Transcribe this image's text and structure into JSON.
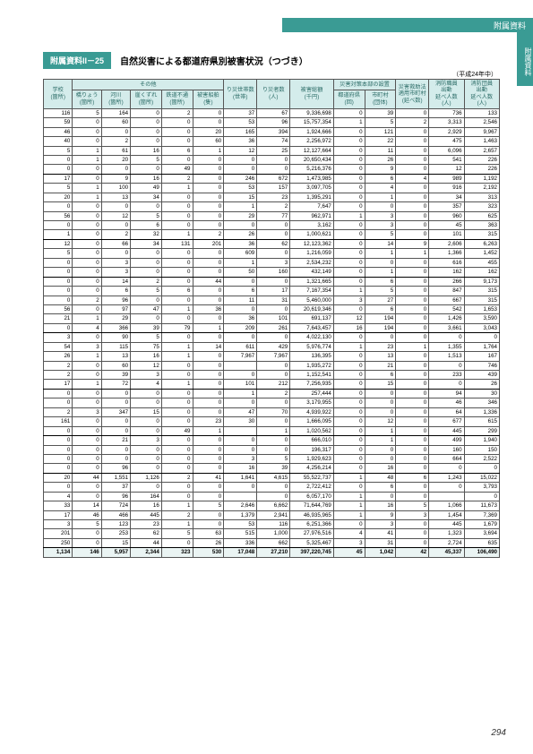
{
  "header": {
    "section": "附属資料",
    "sideTab": "附属資料",
    "badge": "附属資料II－25",
    "title": "自然災害による都道府県別被害状況（つづき）",
    "unit": "（平成24年中）",
    "pageNum": "294"
  },
  "table": {
    "groupHeaders": [
      "その他",
      "災害対策本部の設置"
    ],
    "cols": [
      "学校\n(箇所)",
      "橋りょう\n(箇所)",
      "河川\n(箇所)",
      "崖くずれ\n(箇所)",
      "鉄道不通\n(箇所)",
      "被害船舶\n(隻)",
      "り災世帯数\n(世帯)",
      "り災者数\n(人)",
      "被害総額\n(千円)",
      "都道府県\n(回)",
      "市町村\n(団体)",
      "災害救助法\n適用市町村\n(延べ数)",
      "消防職員\n出動\n延べ人数\n(人)",
      "消防団員\n出動\n延べ人数\n(人)"
    ],
    "groupSpans": {
      "other": 5,
      "hq": 2
    },
    "colors": {
      "headerBg": "#d4eceb",
      "headerFg": "#2a6b66",
      "brand": "#3a9b94",
      "totalBg": "#eaf4f3",
      "border": "#555"
    },
    "sections": [
      [
        [
          "116",
          "5",
          "164",
          "0",
          "2",
          "0",
          "37",
          "67",
          "9,336,698",
          "0",
          "39",
          "0",
          "736",
          "133"
        ],
        [
          "59",
          "0",
          "60",
          "0",
          "0",
          "0",
          "53",
          "96",
          "15,757,354",
          "1",
          "5",
          "2",
          "3,313",
          "2,546"
        ],
        [
          "46",
          "0",
          "0",
          "0",
          "0",
          "20",
          "165",
          "394",
          "1,924,666",
          "0",
          "121",
          "0",
          "2,929",
          "9,967"
        ],
        [
          "40",
          "0",
          "2",
          "0",
          "0",
          "60",
          "36",
          "74",
          "2,256,972",
          "0",
          "22",
          "0",
          "475",
          "1,463"
        ],
        [
          "5",
          "1",
          "61",
          "16",
          "6",
          "1",
          "12",
          "25",
          "12,127,664",
          "0",
          "11",
          "0",
          "6,096",
          "2,657"
        ],
        [
          "0",
          "1",
          "20",
          "5",
          "0",
          "0",
          "0",
          "0",
          "20,650,434",
          "0",
          "26",
          "0",
          "541",
          "226"
        ],
        [
          "0",
          "0",
          "0",
          "0",
          "49",
          "0",
          "0",
          "0",
          "5,216,376",
          "0",
          "9",
          "0",
          "12",
          "226"
        ]
      ],
      [
        [
          "17",
          "0",
          "9",
          "16",
          "2",
          "0",
          "246",
          "672",
          "1,473,985",
          "0",
          "6",
          "4",
          "989",
          "1,192"
        ],
        [
          "5",
          "1",
          "100",
          "49",
          "1",
          "0",
          "53",
          "157",
          "3,097,705",
          "0",
          "4",
          "0",
          "916",
          "2,192"
        ],
        [
          "20",
          "1",
          "13",
          "34",
          "0",
          "0",
          "15",
          "23",
          "1,395,291",
          "0",
          "1",
          "0",
          "34",
          "313"
        ],
        [
          "0",
          "0",
          "0",
          "0",
          "0",
          "0",
          "1",
          "2",
          "7,647",
          "0",
          "0",
          "0",
          "357",
          "323"
        ],
        [
          "56",
          "0",
          "12",
          "5",
          "0",
          "0",
          "29",
          "77",
          "962,971",
          "1",
          "3",
          "0",
          "960",
          "625"
        ],
        [
          "0",
          "0",
          "0",
          "6",
          "0",
          "0",
          "0",
          "0",
          "3,162",
          "0",
          "3",
          "0",
          "45",
          "363"
        ],
        [
          "1",
          "0",
          "2",
          "32",
          "1",
          "2",
          "26",
          "0",
          "1,000,621",
          "0",
          "5",
          "0",
          "101",
          "315"
        ]
      ],
      [
        [
          "12",
          "0",
          "66",
          "34",
          "131",
          "201",
          "36",
          "62",
          "12,123,362",
          "0",
          "14",
          "9",
          "2,606",
          "6,263"
        ],
        [
          "5",
          "0",
          "0",
          "0",
          "0",
          "0",
          "609",
          "0",
          "1,216,059",
          "0",
          "1",
          "1",
          "1,366",
          "1,452"
        ],
        [
          "0",
          "0",
          "3",
          "0",
          "0",
          "0",
          "1",
          "3",
          "2,534,232",
          "0",
          "0",
          "0",
          "616",
          "455"
        ],
        [
          "0",
          "0",
          "3",
          "0",
          "0",
          "0",
          "50",
          "160",
          "432,149",
          "0",
          "1",
          "0",
          "162",
          "162"
        ]
      ],
      [
        [
          "0",
          "0",
          "14",
          "2",
          "0",
          "44",
          "0",
          "0",
          "1,321,665",
          "0",
          "6",
          "0",
          "266",
          "9,173"
        ],
        [
          "0",
          "0",
          "6",
          "5",
          "6",
          "0",
          "6",
          "17",
          "7,167,354",
          "1",
          "5",
          "0",
          "847",
          "315"
        ],
        [
          "0",
          "2",
          "96",
          "0",
          "0",
          "0",
          "11",
          "31",
          "5,460,000",
          "3",
          "27",
          "0",
          "667",
          "315"
        ],
        [
          "56",
          "0",
          "97",
          "47",
          "1",
          "36",
          "0",
          "0",
          "20,619,346",
          "0",
          "6",
          "0",
          "542",
          "1,653"
        ],
        [
          "21",
          "1",
          "29",
          "0",
          "0",
          "0",
          "36",
          "101",
          "691,137",
          "12",
          "194",
          "0",
          "1,426",
          "3,590"
        ],
        [
          "0",
          "4",
          "366",
          "39",
          "79",
          "1",
          "209",
          "261",
          "7,643,457",
          "16",
          "194",
          "0",
          "3,661",
          "3,043"
        ]
      ],
      [
        [
          "3",
          "0",
          "90",
          "5",
          "0",
          "0",
          "0",
          "0",
          "4,022,130",
          "0",
          "0",
          "0",
          "0",
          "0"
        ],
        [
          "54",
          "3",
          "115",
          "75",
          "1",
          "14",
          "611",
          "429",
          "5,976,774",
          "1",
          "23",
          "1",
          "1,355",
          "1,764"
        ],
        [
          "26",
          "1",
          "13",
          "16",
          "1",
          "0",
          "7,967",
          "7,967",
          "136,395",
          "0",
          "13",
          "0",
          "1,513",
          "167"
        ],
        [
          "2",
          "0",
          "60",
          "12",
          "0",
          "0",
          "",
          "0",
          "1,935,272",
          "0",
          "21",
          "0",
          "0",
          "746"
        ],
        [
          "2",
          "0",
          "39",
          "3",
          "0",
          "0",
          "0",
          "0",
          "1,152,541",
          "0",
          "6",
          "0",
          "233",
          "439"
        ],
        [
          "17",
          "1",
          "72",
          "4",
          "1",
          "0",
          "101",
          "212",
          "7,256,935",
          "0",
          "15",
          "0",
          "0",
          "26"
        ]
      ],
      [
        [
          "0",
          "0",
          "0",
          "0",
          "0",
          "0",
          "1",
          "2",
          "257,444",
          "0",
          "0",
          "0",
          "94",
          "30"
        ],
        [
          "0",
          "0",
          "0",
          "0",
          "0",
          "0",
          "0",
          "0",
          "3,179,955",
          "0",
          "0",
          "0",
          "46",
          "346"
        ],
        [
          "2",
          "3",
          "347",
          "15",
          "0",
          "0",
          "47",
          "70",
          "4,939,922",
          "0",
          "0",
          "0",
          "64",
          "1,336"
        ],
        [
          "161",
          "0",
          "0",
          "0",
          "0",
          "23",
          "30",
          "0",
          "1,666,095",
          "0",
          "12",
          "0",
          "677",
          "615"
        ],
        [
          "0",
          "0",
          "0",
          "0",
          "49",
          "1",
          "",
          "1",
          "1,020,562",
          "0",
          "1",
          "0",
          "445",
          "299"
        ]
      ],
      [
        [
          "0",
          "0",
          "21",
          "3",
          "0",
          "0",
          "0",
          "0",
          "666,010",
          "0",
          "1",
          "0",
          "499",
          "1,940"
        ],
        [
          "0",
          "0",
          "0",
          "0",
          "0",
          "0",
          "0",
          "0",
          "196,317",
          "0",
          "0",
          "0",
          "160",
          "150"
        ],
        [
          "0",
          "0",
          "0",
          "0",
          "0",
          "0",
          "3",
          "5",
          "1,929,623",
          "0",
          "0",
          "0",
          "664",
          "2,522"
        ],
        [
          "0",
          "0",
          "96",
          "0",
          "0",
          "0",
          "16",
          "39",
          "4,256,214",
          "0",
          "16",
          "0",
          "0",
          "0"
        ]
      ],
      [
        [
          "20",
          "44",
          "1,551",
          "1,126",
          "2",
          "41",
          "1,641",
          "4,615",
          "55,522,737",
          "1",
          "48",
          "6",
          "1,243",
          "15,022"
        ],
        [
          "0",
          "0",
          "37",
          "0",
          "0",
          "0",
          "0",
          "0",
          "2,722,412",
          "0",
          "6",
          "0",
          "0",
          "3,793"
        ],
        [
          "4",
          "0",
          "96",
          "164",
          "0",
          "0",
          "",
          "0",
          "6,057,170",
          "1",
          "0",
          "0",
          "",
          "0"
        ],
        [
          "33",
          "14",
          "724",
          "16",
          "1",
          "5",
          "2,646",
          "6,662",
          "71,644,769",
          "1",
          "16",
          "5",
          "1,066",
          "11,673"
        ],
        [
          "17",
          "46",
          "466",
          "445",
          "2",
          "0",
          "1,379",
          "2,941",
          "46,935,965",
          "1",
          "9",
          "3",
          "1,454",
          "7,369"
        ],
        [
          "3",
          "5",
          "123",
          "23",
          "1",
          "0",
          "53",
          "116",
          "6,251,366",
          "0",
          "3",
          "0",
          "445",
          "1,679"
        ],
        [
          "201",
          "0",
          "253",
          "62",
          "5",
          "63",
          "515",
          "1,000",
          "27,976,516",
          "4",
          "41",
          "0",
          "1,323",
          "3,694"
        ],
        [
          "250",
          "0",
          "15",
          "44",
          "0",
          "26",
          "336",
          "662",
          "5,325,467",
          "3",
          "31",
          "0",
          "2,724",
          "635"
        ]
      ]
    ],
    "grand": [
      "1,134",
      "146",
      "5,957",
      "2,344",
      "323",
      "530",
      "17,048",
      "27,210",
      "397,220,745",
      "45",
      "1,042",
      "42",
      "45,337",
      "106,490"
    ]
  }
}
